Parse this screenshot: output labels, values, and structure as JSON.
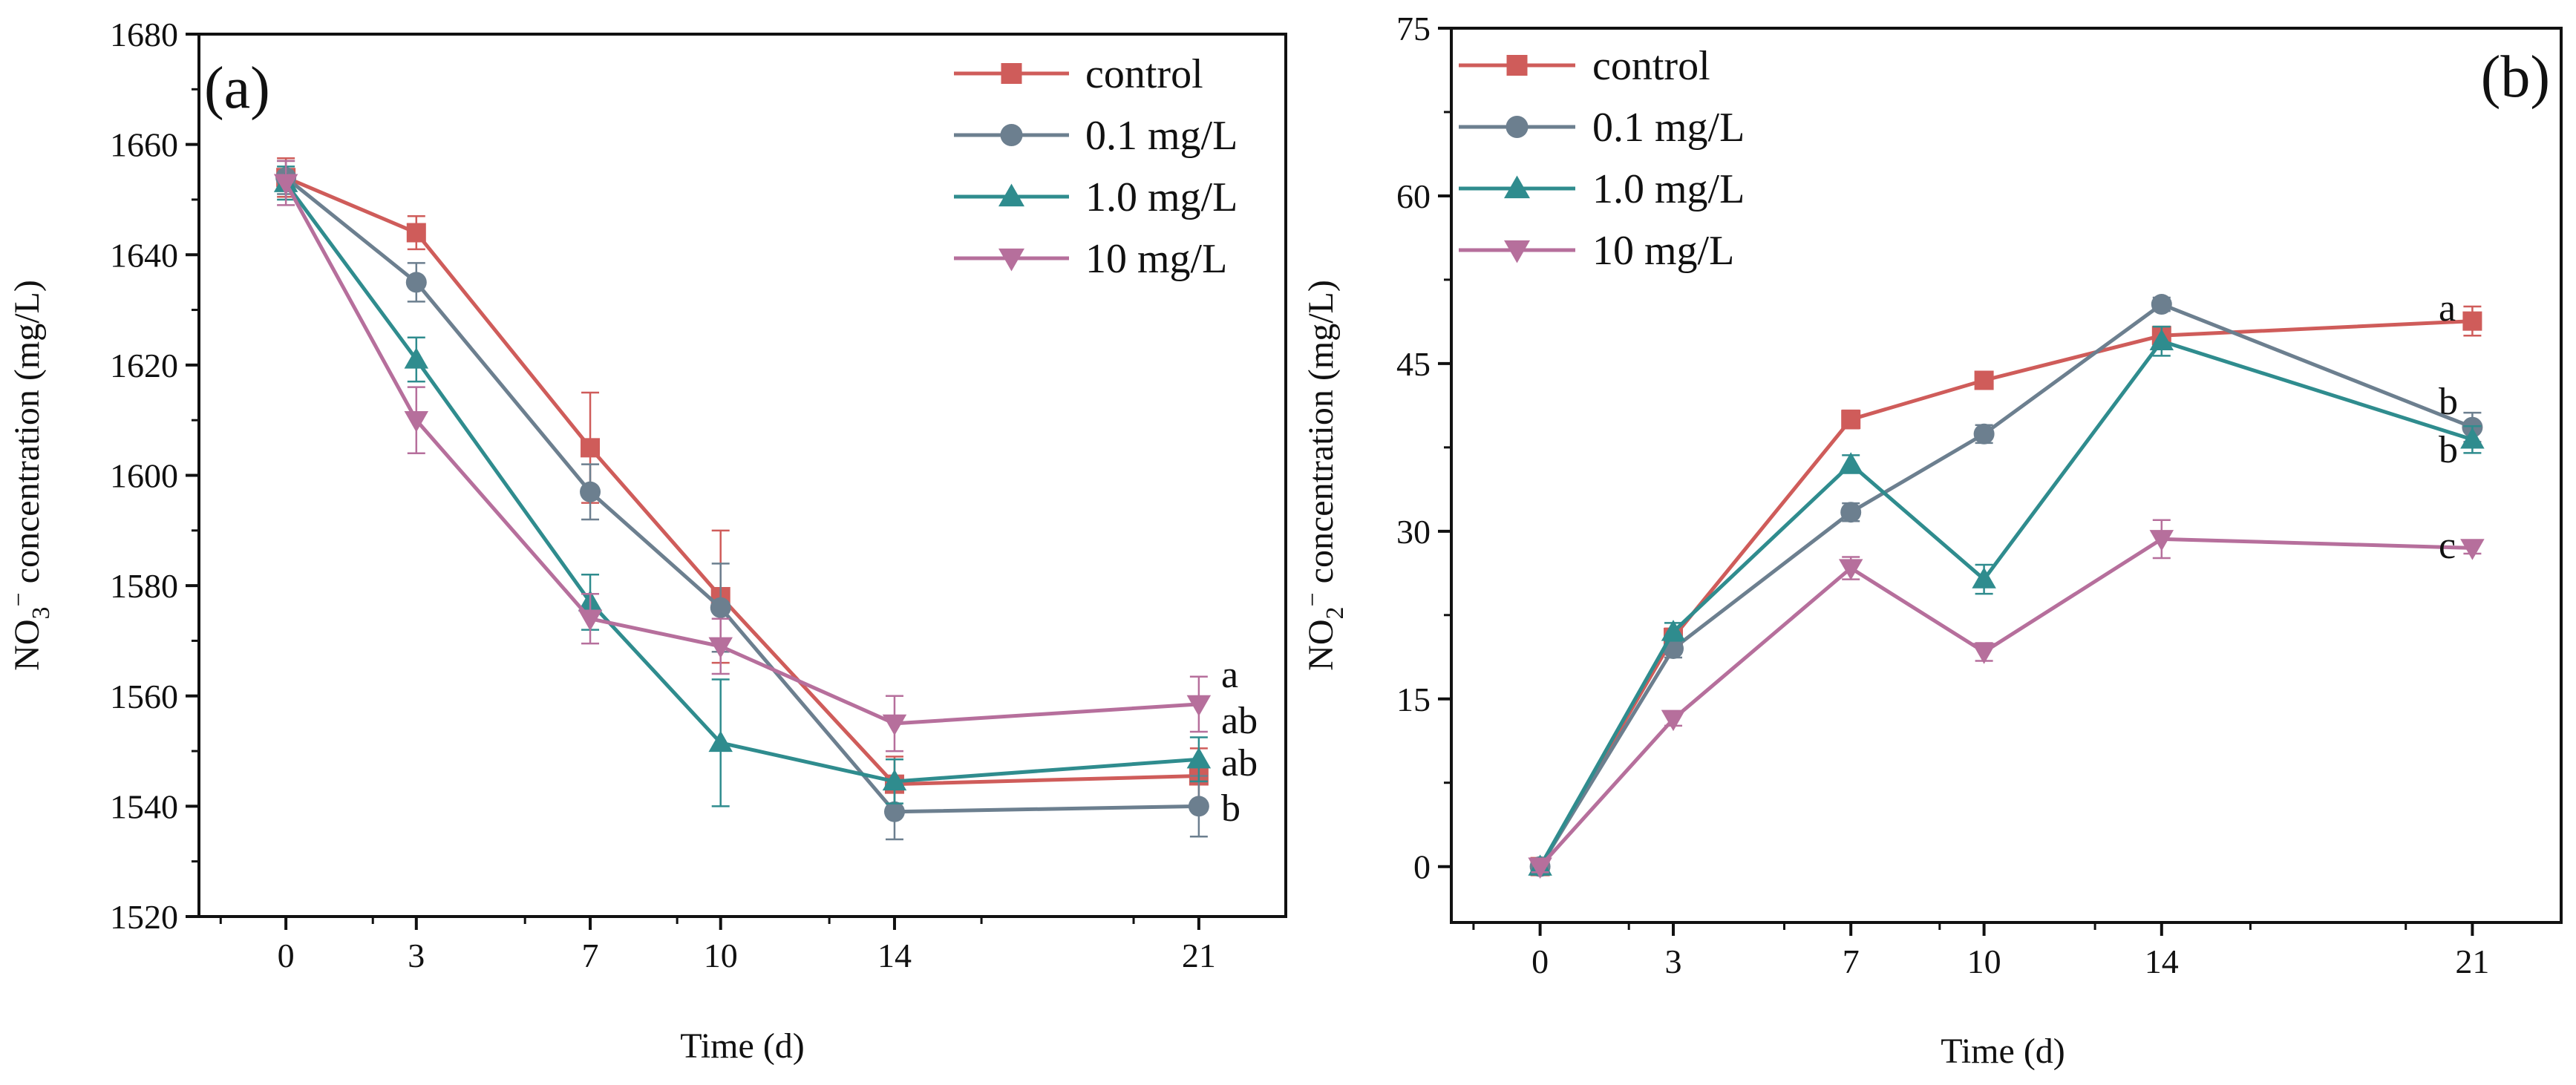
{
  "figure": {
    "panels": [
      {
        "id": "a",
        "label": "(a)"
      },
      {
        "id": "b",
        "label": "(b)"
      }
    ]
  },
  "chart_data": [
    {
      "type": "line",
      "panel": "(a)",
      "title": "",
      "xlabel": "Time (d)",
      "ylabel": "NO3− concentration (mg/L)",
      "ylabel_parts": {
        "main": "NO",
        "sub": "3",
        "sup": "−",
        "rest": " concentration (mg/L)"
      },
      "x": [
        0,
        3,
        7,
        10,
        14,
        21
      ],
      "xlim": [
        -2,
        23
      ],
      "ylim": [
        1520,
        1680
      ],
      "x_ticks": [
        0,
        3,
        7,
        10,
        14,
        21
      ],
      "y_ticks": [
        1520,
        1540,
        1560,
        1580,
        1600,
        1620,
        1640,
        1660,
        1680
      ],
      "legend_position": "top-right",
      "series": [
        {
          "name": "control",
          "color": "#cf5c5a",
          "marker": "square",
          "values": [
            1654,
            1644,
            1605,
            1578,
            1544,
            1545.5
          ],
          "errors": [
            3.5,
            3,
            10,
            12,
            5,
            5
          ],
          "significance": "ab"
        },
        {
          "name": "0.1 mg/L",
          "color": "#6c7f8f",
          "marker": "circle",
          "values": [
            1654,
            1635,
            1597,
            1576,
            1539,
            1540
          ],
          "errors": [
            3,
            3.5,
            5,
            8,
            5,
            5.5
          ],
          "significance": "b"
        },
        {
          "name": "1.0 mg/L",
          "color": "#2f8c8e",
          "marker": "triangle-up",
          "values": [
            1653,
            1621,
            1577,
            1551.5,
            1544.5,
            1548.5
          ],
          "errors": [
            3,
            4,
            5,
            11.5,
            4,
            4
          ],
          "significance": "ab"
        },
        {
          "name": "10 mg/L",
          "color": "#b66f9c",
          "marker": "triangle-down",
          "values": [
            1653,
            1610,
            1574,
            1569,
            1555,
            1558.5
          ],
          "errors": [
            4,
            6,
            4.5,
            5,
            5,
            5
          ],
          "significance": "a"
        }
      ]
    },
    {
      "type": "line",
      "panel": "(b)",
      "title": "",
      "xlabel": "Time (d)",
      "ylabel": "NO2− concentration (mg/L)",
      "ylabel_parts": {
        "main": "NO",
        "sub": "2",
        "sup": "−",
        "rest": " concentration (mg/L)"
      },
      "x": [
        0,
        3,
        7,
        10,
        14,
        21
      ],
      "xlim": [
        -2,
        23
      ],
      "ylim": [
        -5,
        75
      ],
      "x_ticks": [
        0,
        3,
        7,
        10,
        14,
        21
      ],
      "y_ticks": [
        0,
        15,
        30,
        45,
        60,
        75
      ],
      "legend_position": "top-left",
      "series": [
        {
          "name": "control",
          "color": "#cf5c5a",
          "marker": "square",
          "values": [
            0,
            20.5,
            40,
            43.5,
            47.5,
            48.8
          ],
          "errors": [
            0.5,
            0.8,
            0.8,
            0.7,
            0.8,
            1.3
          ],
          "significance": "a"
        },
        {
          "name": "0.1 mg/L",
          "color": "#6c7f8f",
          "marker": "circle",
          "values": [
            0,
            19.5,
            31.7,
            38.7,
            50.3,
            39.3
          ],
          "errors": [
            0.5,
            0.8,
            0.8,
            0.8,
            0.6,
            1.3
          ],
          "significance": "b"
        },
        {
          "name": "1.0 mg/L",
          "color": "#2f8c8e",
          "marker": "triangle-up",
          "values": [
            0,
            21,
            36,
            25.7,
            47,
            38.2
          ],
          "errors": [
            0.5,
            0.8,
            0.8,
            1.3,
            1.3,
            1.2
          ],
          "significance": "b"
        },
        {
          "name": "10 mg/L",
          "color": "#b66f9c",
          "marker": "triangle-down",
          "values": [
            0,
            13.2,
            26.7,
            19.2,
            29.3,
            28.5
          ],
          "errors": [
            0.5,
            0.6,
            1,
            0.8,
            1.7,
            0.5
          ],
          "significance": "c"
        }
      ]
    }
  ]
}
